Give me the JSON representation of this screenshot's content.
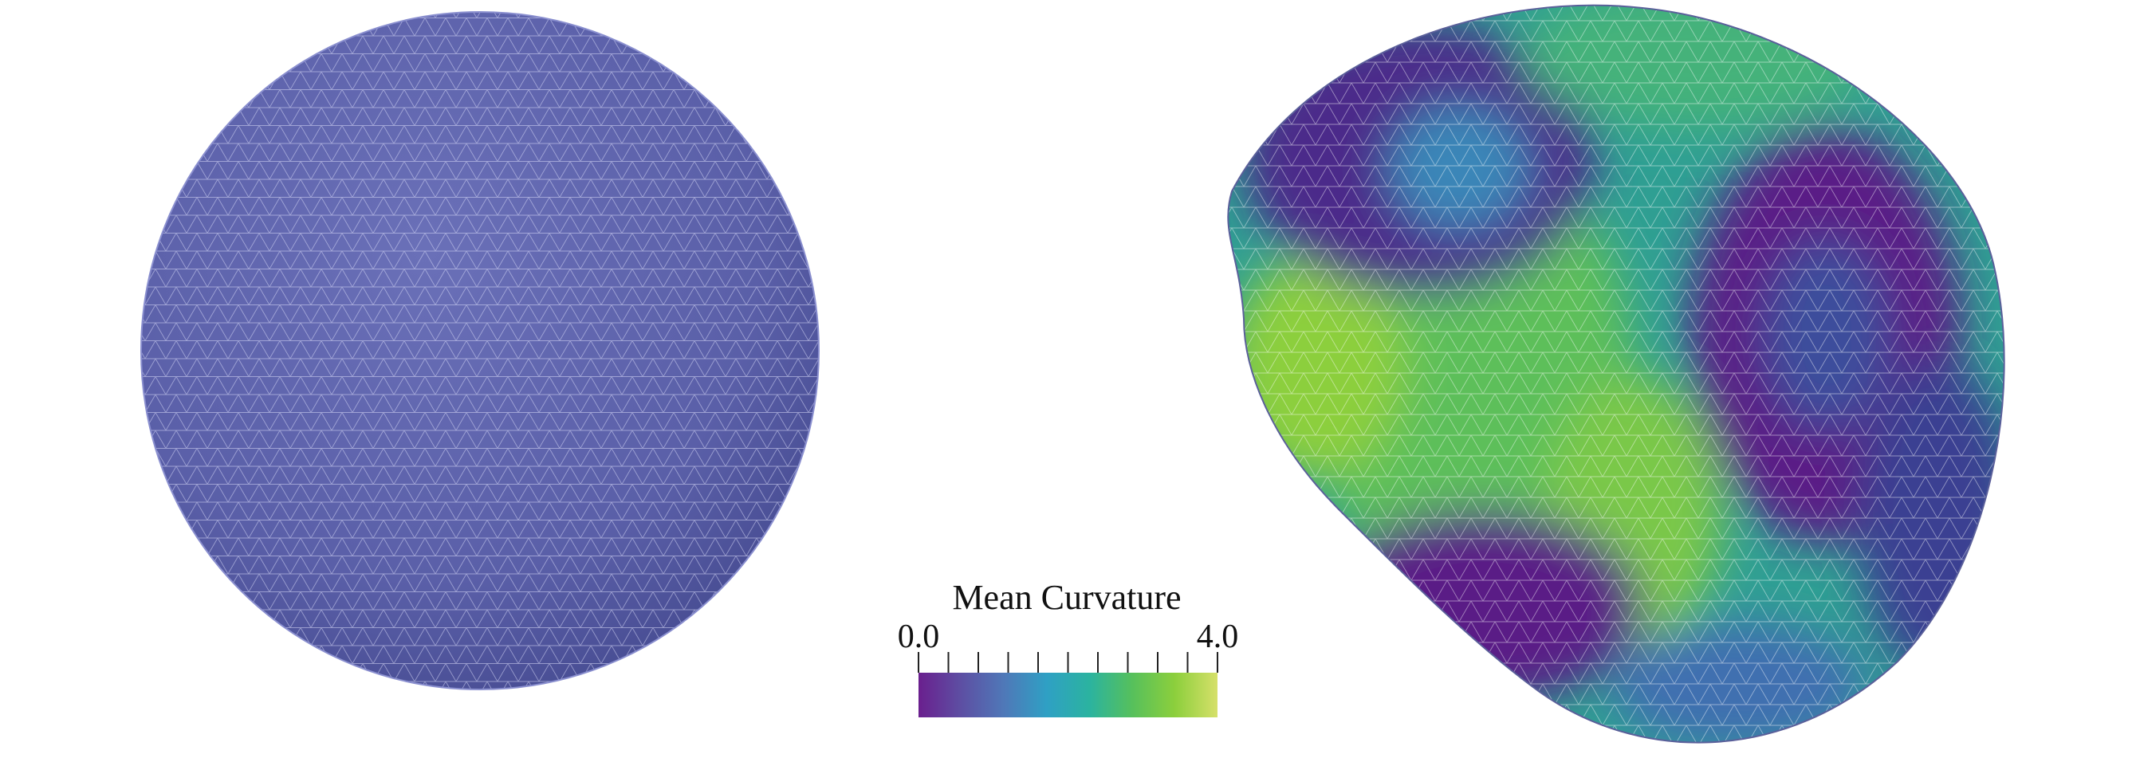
{
  "colorbar": {
    "title": "Mean Curvature",
    "min_label": "0.0",
    "max_label": "4.0",
    "min": 0.0,
    "max": 4.0,
    "colors": [
      "#6a1f8e",
      "#5d4fa3",
      "#4f78b8",
      "#2fa0c4",
      "#2bb3a0",
      "#56c05c",
      "#8ccf3c",
      "#d6e06a"
    ],
    "tick_count": 11
  },
  "left_shape": {
    "mean_curvature": 1.0,
    "surface_color": "#5a5fa8",
    "wire_color": "#c9ccf2"
  },
  "right_shape": {
    "curvature_range": [
      0.0,
      4.0
    ]
  }
}
